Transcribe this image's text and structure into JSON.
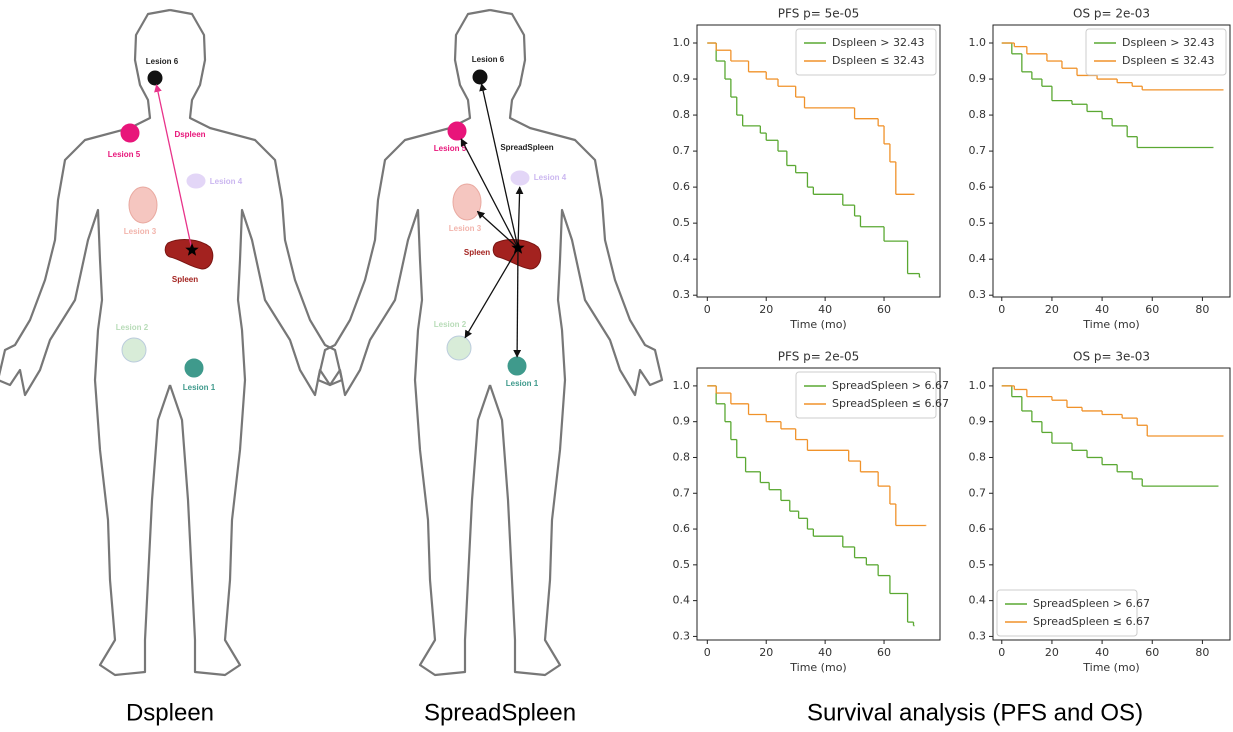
{
  "diagrams": [
    {
      "metric": "Dspleen",
      "organ": "Spleen",
      "lesions": [
        "Lesion 1",
        "Lesion 2",
        "Lesion 3",
        "Lesion 4",
        "Lesion 5",
        "Lesion 6"
      ]
    },
    {
      "metric": "SpreadSpleen",
      "organ": "Spleen",
      "lesions": [
        "Lesion 1",
        "Lesion 2",
        "Lesion 3",
        "Lesion 4",
        "Lesion 5",
        "Lesion 6"
      ]
    }
  ],
  "captions": [
    "Dspleen",
    "SpreadSpleen",
    "Survival analysis (PFS and OS)"
  ],
  "chart_data": [
    {
      "type": "step",
      "title": "PFS p= 5e-05",
      "xlabel": "Time (mo)",
      "legend": "upper right",
      "xlim": [
        -3.5,
        79
      ],
      "ylim": [
        0.295,
        1.05
      ],
      "xticks": [
        0,
        20,
        40,
        60
      ],
      "yticks": [
        0.3,
        0.4,
        0.5,
        0.6,
        0.7,
        0.8,
        0.9,
        {
          "value": 1,
          "label": "1.0"
        }
      ],
      "series": [
        {
          "name": "Dspleen >  32.43",
          "color": "#5aa832",
          "x": [
            0,
            3,
            6,
            8,
            10,
            12,
            18,
            20,
            24,
            27,
            30,
            34,
            36,
            46,
            50,
            52,
            60,
            68,
            72
          ],
          "values": [
            1,
            0.95,
            0.9,
            0.85,
            0.8,
            0.77,
            0.75,
            0.73,
            0.7,
            0.66,
            0.64,
            0.6,
            0.58,
            0.55,
            0.52,
            0.49,
            0.45,
            0.36,
            0.35
          ]
        },
        {
          "name": "Dspleen ≤ 32.43",
          "color": "#f0922a",
          "x": [
            0,
            3,
            8,
            14,
            20,
            24,
            30,
            33,
            50,
            58,
            60,
            62,
            64,
            70
          ],
          "values": [
            1,
            0.98,
            0.95,
            0.92,
            0.9,
            0.88,
            0.85,
            0.82,
            0.79,
            0.77,
            0.72,
            0.67,
            0.58,
            0.58
          ]
        }
      ]
    },
    {
      "type": "step",
      "title": "OS p= 2e-03",
      "xlabel": "Time (mo)",
      "legend": "upper right",
      "xlim": [
        -3.5,
        91
      ],
      "ylim": [
        0.295,
        1.05
      ],
      "xticks": [
        0,
        20,
        40,
        60,
        80
      ],
      "yticks": [
        0.3,
        0.4,
        0.5,
        0.6,
        0.7,
        0.8,
        0.9,
        {
          "value": 1,
          "label": "1.0"
        }
      ],
      "series": [
        {
          "name": "Dspleen >  32.43",
          "color": "#5aa832",
          "x": [
            0,
            4,
            8,
            12,
            16,
            20,
            28,
            34,
            40,
            44,
            50,
            54,
            84
          ],
          "values": [
            1,
            0.97,
            0.92,
            0.9,
            0.88,
            0.84,
            0.83,
            0.81,
            0.79,
            0.77,
            0.74,
            0.71,
            0.71
          ]
        },
        {
          "name": "Dspleen ≤ 32.43",
          "color": "#f0922a",
          "x": [
            0,
            5,
            10,
            18,
            24,
            30,
            38,
            46,
            52,
            56,
            88
          ],
          "values": [
            1,
            0.99,
            0.97,
            0.95,
            0.93,
            0.91,
            0.9,
            0.89,
            0.88,
            0.87,
            0.87
          ]
        }
      ]
    },
    {
      "type": "step",
      "title": "PFS p= 2e-05",
      "xlabel": "Time (mo)",
      "legend": "upper right",
      "xlim": [
        -3.5,
        79
      ],
      "ylim": [
        0.29,
        1.05
      ],
      "xticks": [
        0,
        20,
        40,
        60
      ],
      "yticks": [
        0.3,
        0.4,
        0.5,
        0.6,
        0.7,
        0.8,
        0.9,
        {
          "value": 1,
          "label": "1.0"
        }
      ],
      "series": [
        {
          "name": "SpreadSpleen > 6.67",
          "color": "#5aa832",
          "x": [
            0,
            3,
            6,
            8,
            10,
            13,
            18,
            21,
            25,
            28,
            31,
            34,
            36,
            46,
            50,
            54,
            58,
            62,
            68,
            70
          ],
          "values": [
            1,
            0.95,
            0.9,
            0.85,
            0.8,
            0.76,
            0.73,
            0.71,
            0.68,
            0.65,
            0.63,
            0.6,
            0.58,
            0.55,
            0.52,
            0.5,
            0.47,
            0.42,
            0.34,
            0.33
          ]
        },
        {
          "name": "SpreadSpleen ≤ 6.67",
          "color": "#f0922a",
          "x": [
            0,
            3,
            8,
            14,
            20,
            25,
            30,
            34,
            48,
            52,
            58,
            62,
            64,
            74
          ],
          "values": [
            1,
            0.98,
            0.95,
            0.92,
            0.9,
            0.88,
            0.85,
            0.82,
            0.79,
            0.76,
            0.72,
            0.67,
            0.61,
            0.61
          ]
        }
      ]
    },
    {
      "type": "step",
      "title": "OS p= 3e-03",
      "xlabel": "Time (mo)",
      "legend": "lower left",
      "xlim": [
        -3.5,
        91
      ],
      "ylim": [
        0.29,
        1.05
      ],
      "xticks": [
        0,
        20,
        40,
        60,
        80
      ],
      "yticks": [
        0.3,
        0.4,
        0.5,
        0.6,
        0.7,
        0.8,
        0.9,
        {
          "value": 1,
          "label": "1.0"
        }
      ],
      "series": [
        {
          "name": "SpreadSpleen > 6.67",
          "color": "#5aa832",
          "x": [
            0,
            4,
            8,
            12,
            16,
            20,
            28,
            34,
            40,
            46,
            52,
            56,
            86
          ],
          "values": [
            1,
            0.97,
            0.93,
            0.9,
            0.87,
            0.84,
            0.82,
            0.8,
            0.78,
            0.76,
            0.74,
            0.72,
            0.72
          ]
        },
        {
          "name": "SpreadSpleen ≤ 6.67",
          "color": "#f0922a",
          "x": [
            0,
            5,
            10,
            20,
            26,
            32,
            40,
            48,
            54,
            58,
            88
          ],
          "values": [
            1,
            0.99,
            0.97,
            0.96,
            0.94,
            0.93,
            0.92,
            0.91,
            0.89,
            0.86,
            0.86
          ]
        }
      ]
    }
  ]
}
